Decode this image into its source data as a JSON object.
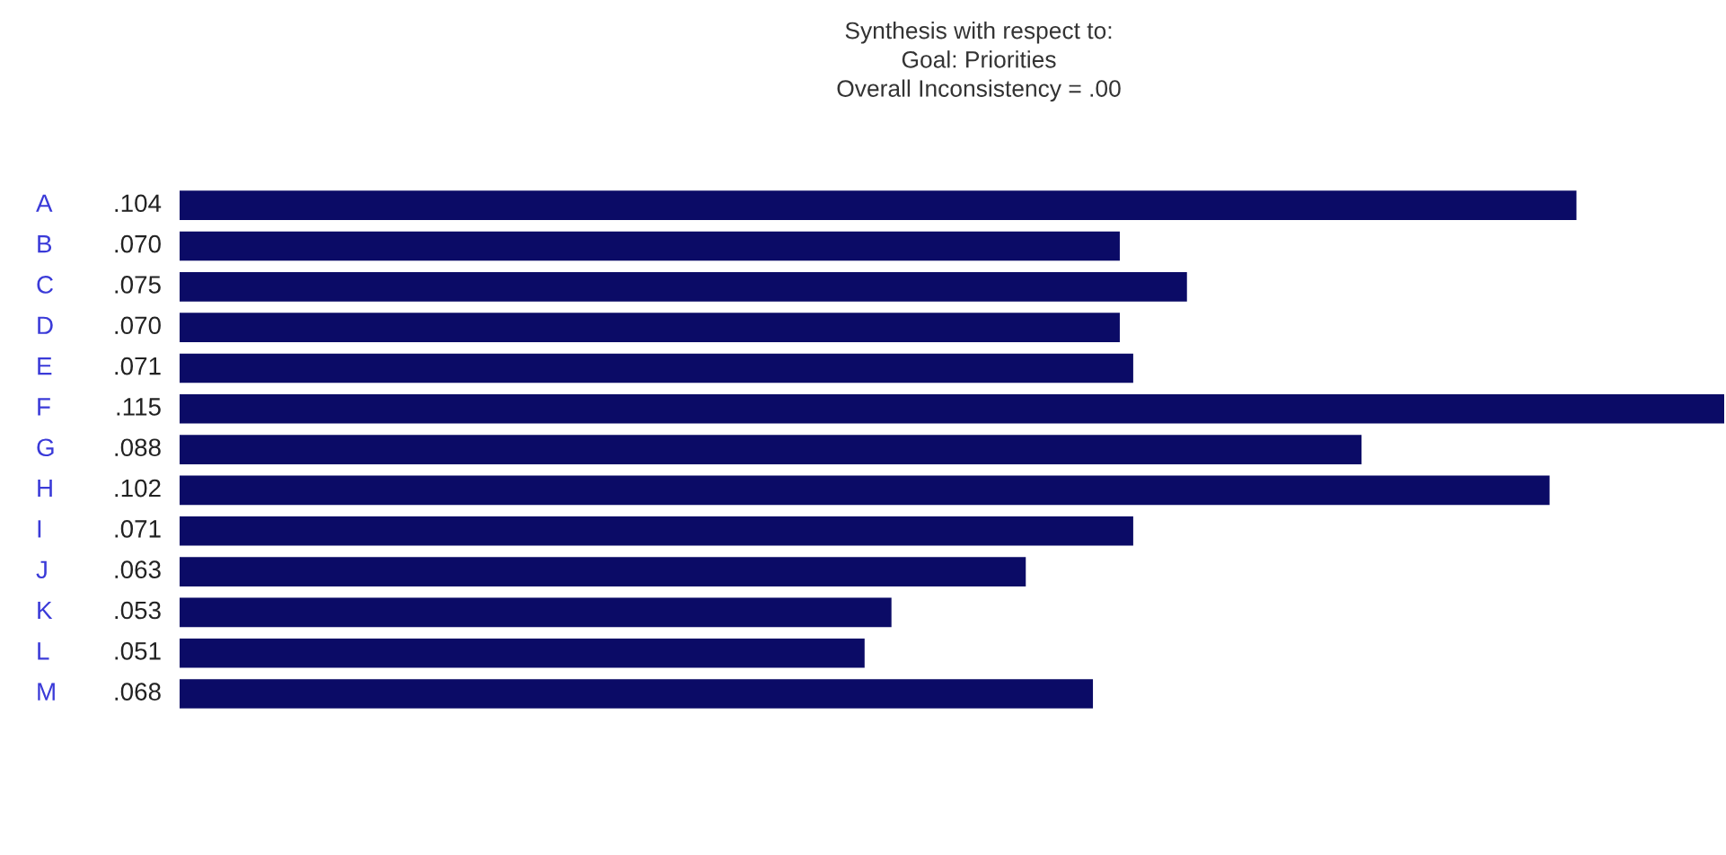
{
  "chart_data": {
    "type": "bar",
    "orientation": "horizontal",
    "title": "Synthesis with respect to:\nGoal: Priorities\nOverall Inconsistency = .00",
    "categories": [
      "A",
      "B",
      "C",
      "D",
      "E",
      "F",
      "G",
      "H",
      "I",
      "J",
      "K",
      "L",
      "M"
    ],
    "values": [
      0.104,
      0.07,
      0.075,
      0.07,
      0.071,
      0.115,
      0.088,
      0.102,
      0.071,
      0.063,
      0.053,
      0.051,
      0.068
    ],
    "value_labels": [
      ".104",
      ".070",
      ".075",
      ".070",
      ".071",
      ".115",
      ".088",
      ".102",
      ".071",
      ".063",
      ".053",
      ".051",
      ".068"
    ],
    "color": "#0b0b66"
  }
}
